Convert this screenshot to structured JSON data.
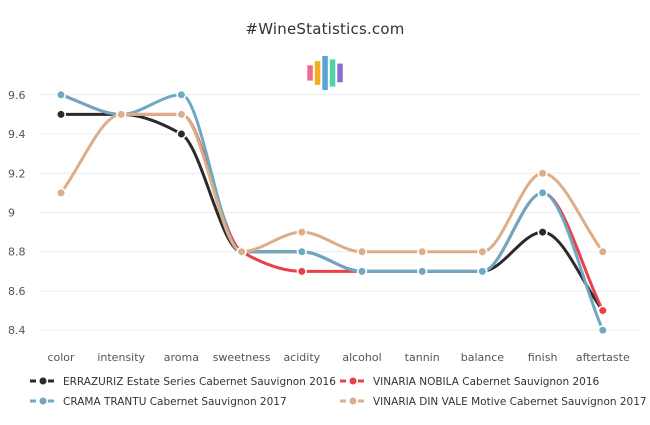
{
  "chart_data": {
    "type": "line",
    "title": "#WineStatistics.com",
    "categories": [
      "color",
      "intensity",
      "aroma",
      "sweetness",
      "acidity",
      "alcohol",
      "tannin",
      "balance",
      "finish",
      "aftertaste"
    ],
    "ylim": [
      8.35,
      9.65
    ],
    "yticks": [
      8.4,
      8.6,
      8.8,
      9,
      9.2,
      9.4,
      9.6
    ],
    "ytick_labels": [
      "8.4",
      "8.6",
      "8.8",
      "9",
      "9.2",
      "9.4",
      "9.6"
    ],
    "xlabel": "",
    "ylabel": "",
    "grid": true,
    "legend_position": "bottom",
    "series": [
      {
        "name": "ERRAZURIZ Estate Series Cabernet Sauvignon 2016",
        "color": "#2b2b2b",
        "values": [
          9.5,
          9.5,
          9.4,
          8.8,
          8.8,
          8.7,
          8.7,
          8.7,
          8.9,
          8.5
        ]
      },
      {
        "name": "VINARIA NOBILA Cabernet Sauvignon 2016",
        "color": "#e8414a",
        "values": [
          9.6,
          9.5,
          9.5,
          8.8,
          8.7,
          8.7,
          8.7,
          8.7,
          9.1,
          8.5
        ]
      },
      {
        "name": "CRAMA TRANTU Cabernet Sauvignon 2017",
        "color": "#6fa8c3",
        "values": [
          9.6,
          9.5,
          9.6,
          8.8,
          8.8,
          8.7,
          8.7,
          8.7,
          9.1,
          8.4
        ]
      },
      {
        "name": "VINARIA DIN VALE Motive Cabernet Sauvignon 2017",
        "color": "#dcae8a",
        "values": [
          9.1,
          9.5,
          9.5,
          8.8,
          8.9,
          8.8,
          8.8,
          8.8,
          9.2,
          8.8
        ]
      }
    ]
  },
  "logo": {
    "bar_colors": [
      "#f06a8c",
      "#f2b01e",
      "#5aa3d8",
      "#4fd3a8",
      "#8e6bcf"
    ],
    "bar_levels": [
      0.45,
      0.7,
      1.0,
      0.8,
      0.55
    ]
  }
}
